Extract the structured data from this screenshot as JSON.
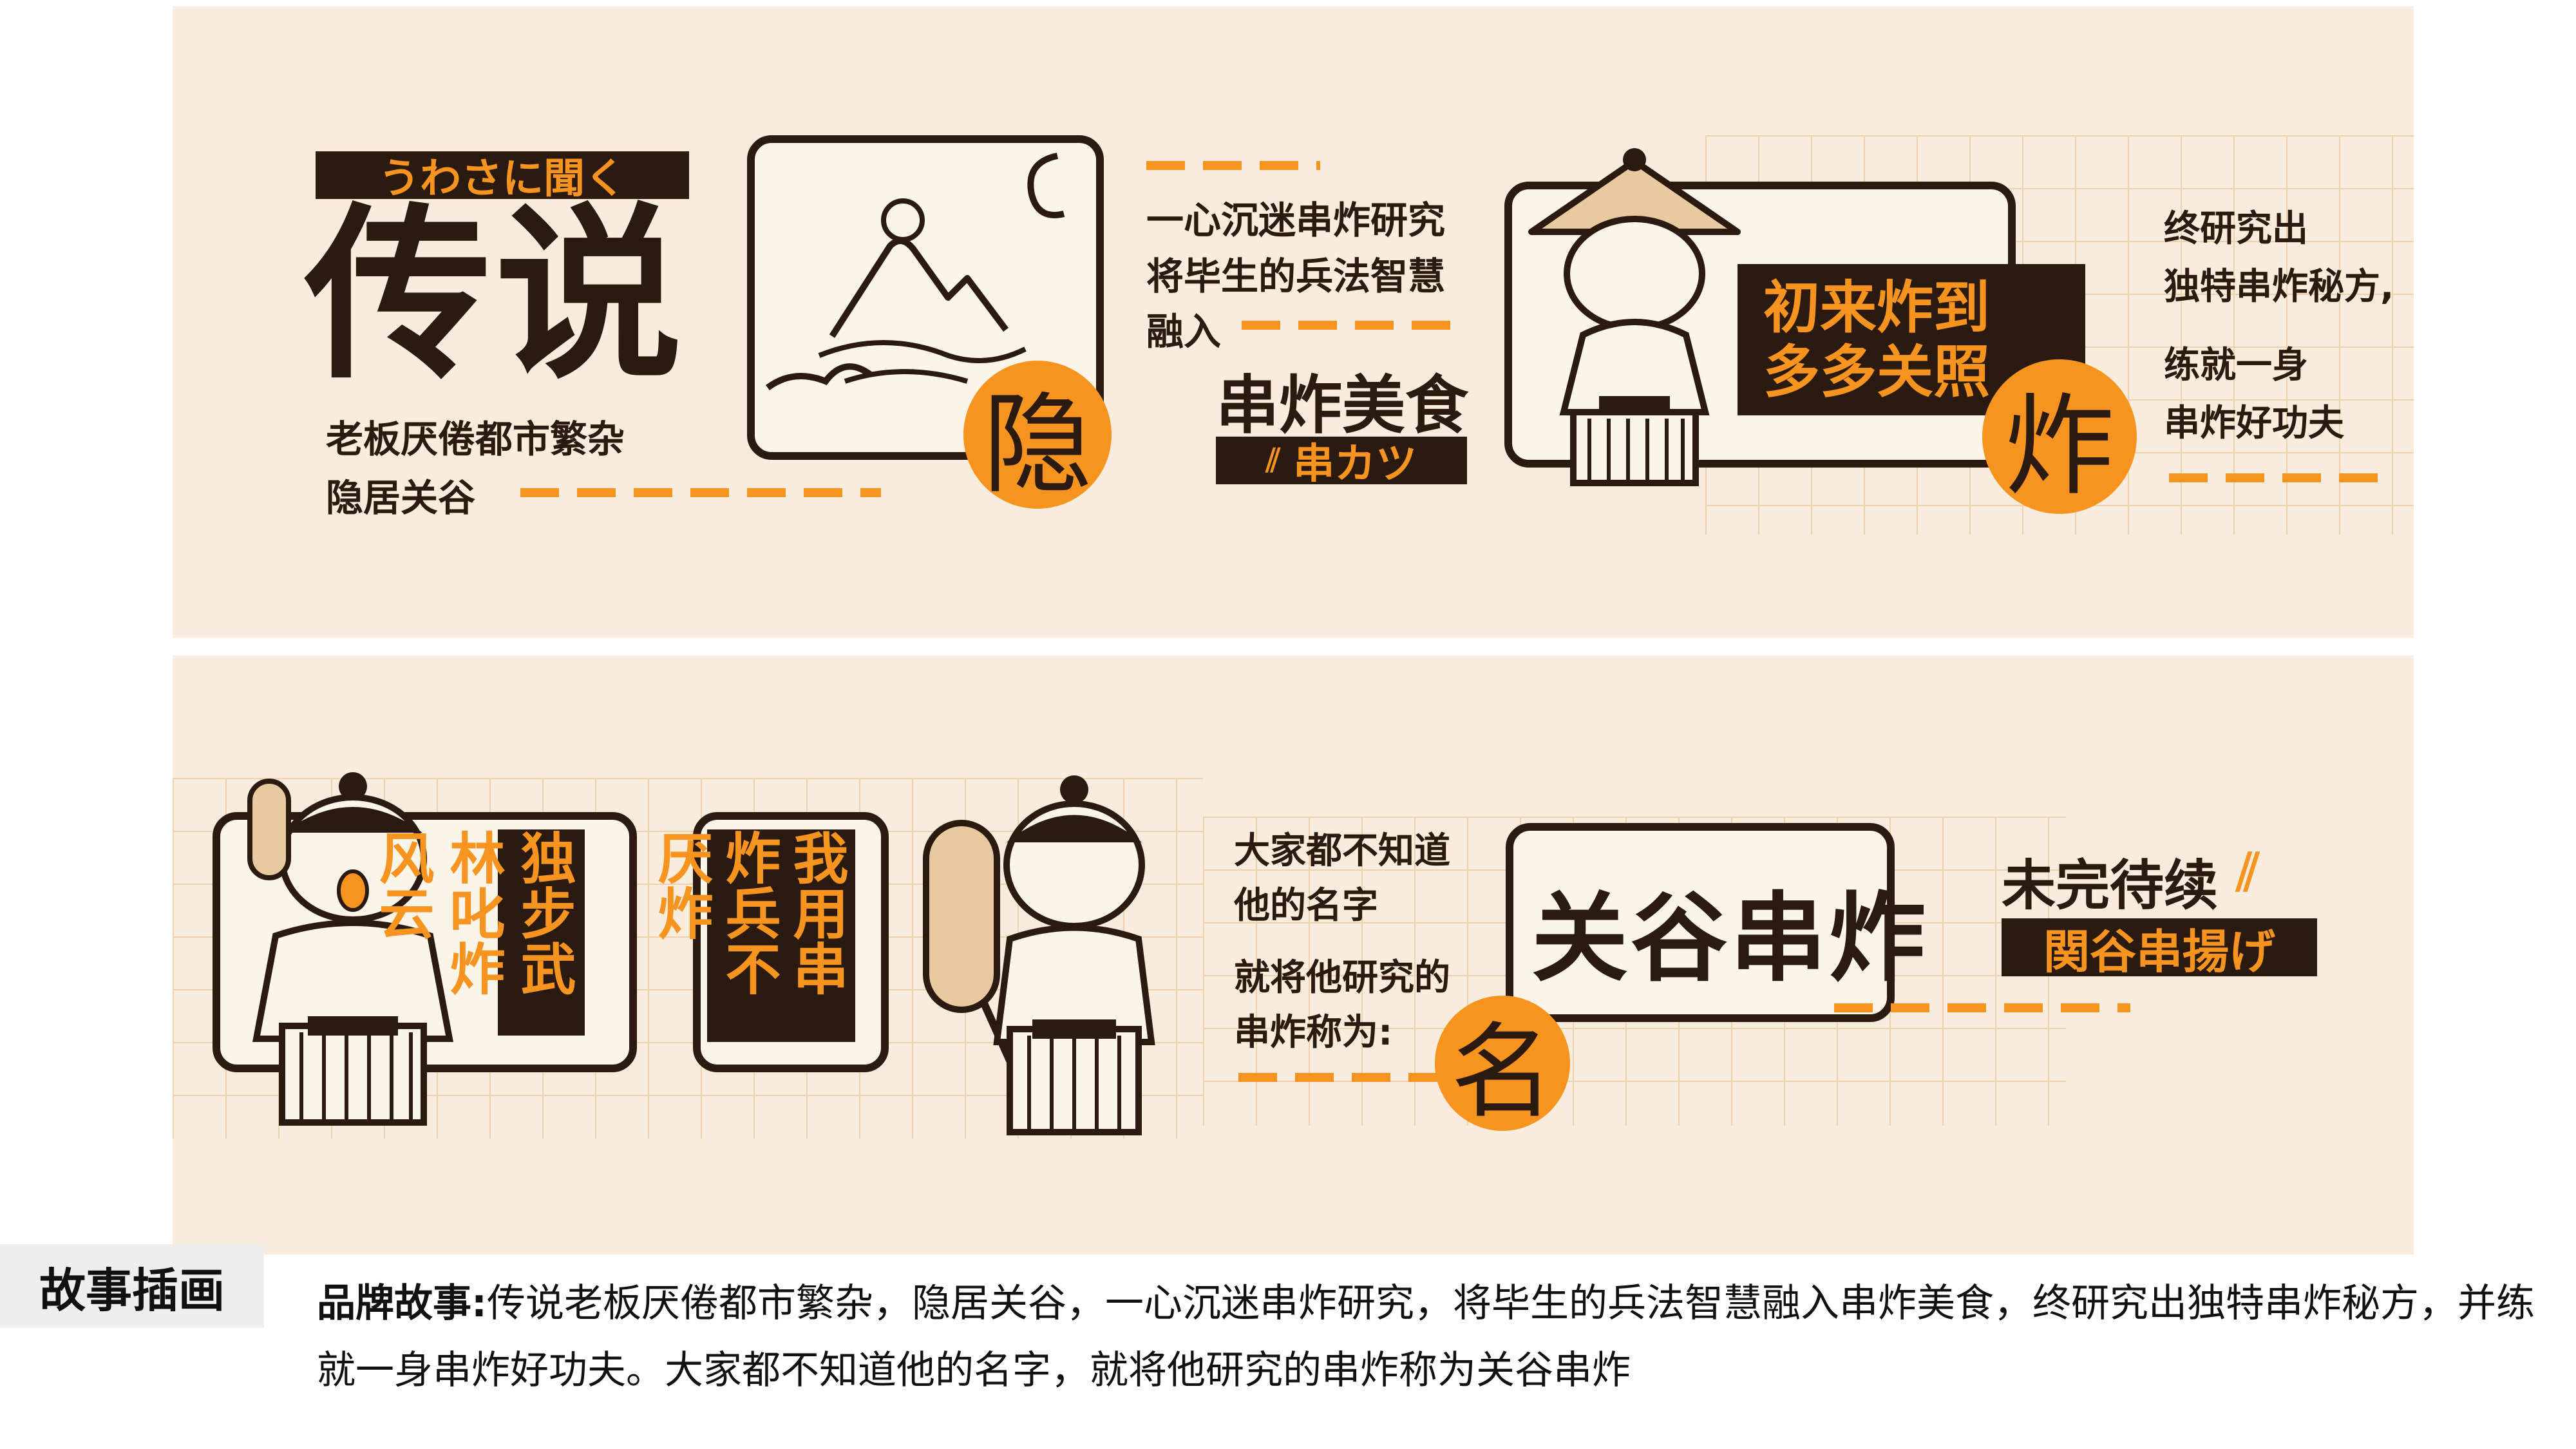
{
  "top": {
    "tag_jp": "うわさに聞く",
    "title": "传说",
    "intro_line1": "老板厌倦都市繁杂",
    "intro_line2": "隐居关谷",
    "circle_yin": "隐",
    "mid_line1": "一心沉迷串炸研究",
    "mid_line2": "将毕生的兵法智慧",
    "mid_line3": "融入",
    "mid_heading": "串炸美食",
    "mid_tag": "串カツ",
    "sign_line1": "初来炸到",
    "sign_line2": "多多关照",
    "circle_zha": "炸",
    "right_line1": "终研究出",
    "right_line2": "独特串炸秘方,",
    "right_line3": "练就一身",
    "right_line4": "串炸好功夫"
  },
  "bottom": {
    "box1_col1": "独步武林",
    "box1_col2": "叱炸风云",
    "box2_col1": "我用串炸",
    "box2_col2": "兵不厌炸",
    "text_line1": "大家都不知道",
    "text_line2": "他的名字",
    "text_line3": "就将他研究的",
    "text_line4": "串炸称为:",
    "circle_ming": "名",
    "brand_name": "关谷串炸",
    "tbc": "未完待续",
    "tbc_tag": "関谷串揚げ"
  },
  "footer": {
    "label": "故事插画",
    "story_title": "品牌故事:",
    "story_body": "传说老板厌倦都市繁杂，隐居关谷，一心沉迷串炸研究，将毕生的兵法智慧融入串炸美食，终研究出独特串炸秘方，并练就一身串炸好功夫。大家都不知道他的名字，就将他研究的串炸称为关谷串炸"
  },
  "colors": {
    "panel_bg": "#f8eddc",
    "accent": "#f6941f",
    "ink": "#2a1a10"
  }
}
